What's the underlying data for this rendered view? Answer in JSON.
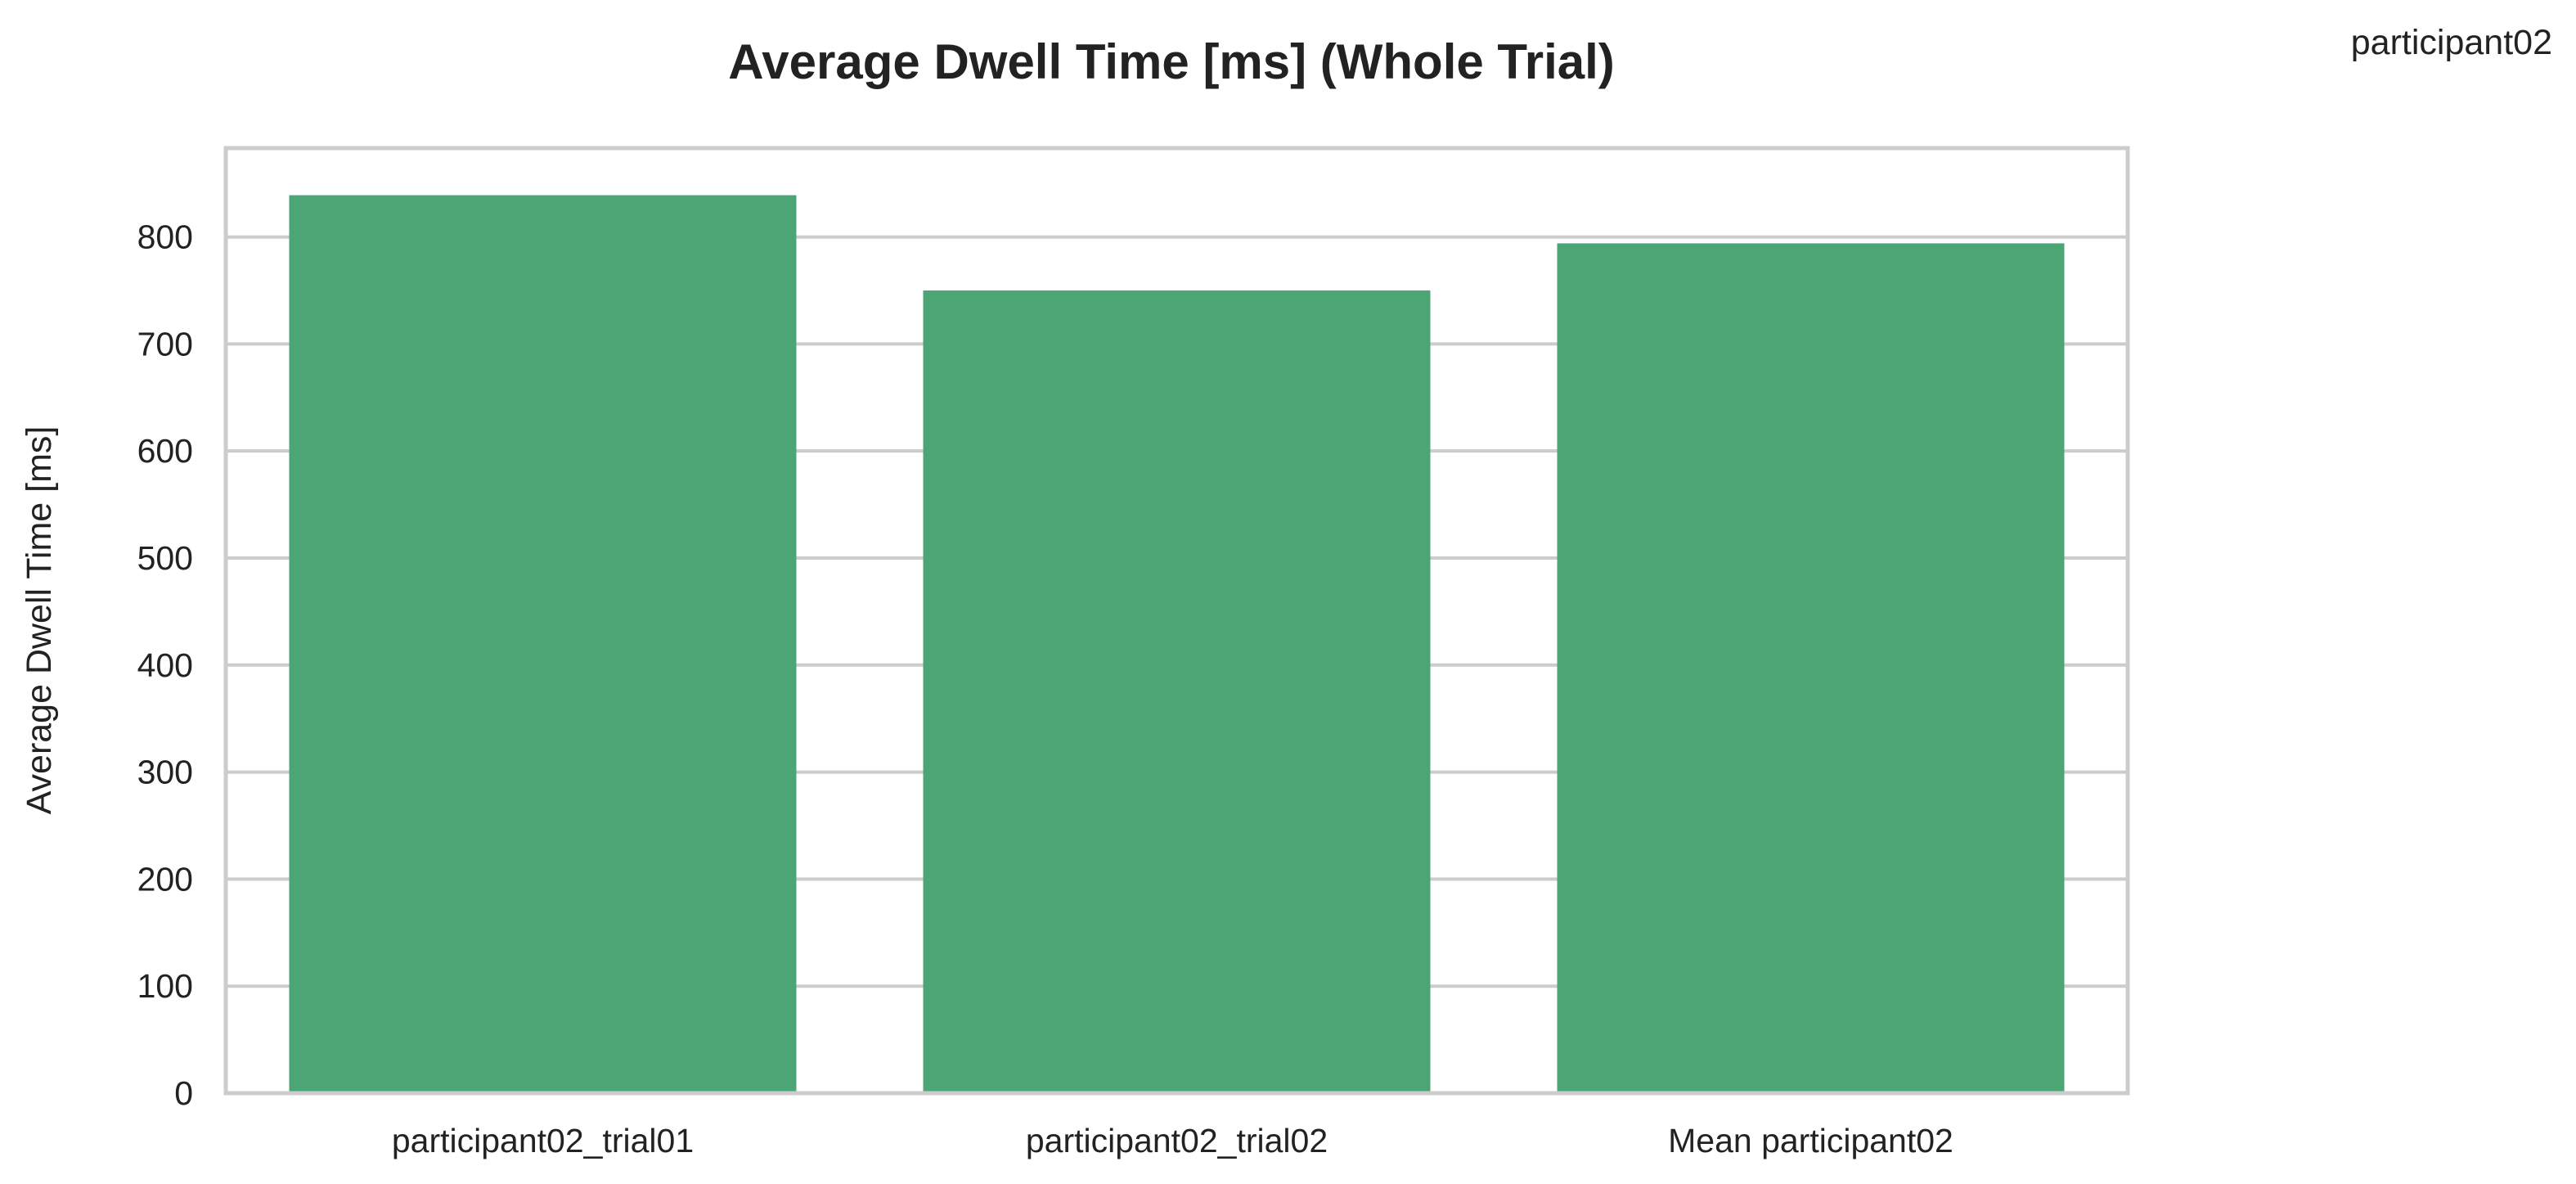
{
  "corner_label": "participant02",
  "chart_data": {
    "type": "bar",
    "title": "Average Dwell Time [ms] (Whole Trial)",
    "xlabel": "",
    "ylabel": "Average Dwell Time [ms]",
    "categories": [
      "participant02_trial01",
      "participant02_trial02",
      "Mean participant02"
    ],
    "values": [
      839,
      750,
      794
    ],
    "ylim": [
      0,
      883
    ],
    "yticks": [
      0,
      100,
      200,
      300,
      400,
      500,
      600,
      700,
      800
    ],
    "grid": "horizontal",
    "bar_color": "#4ca574",
    "grid_color": "#cccccc",
    "frame_color": "#cccccc"
  }
}
